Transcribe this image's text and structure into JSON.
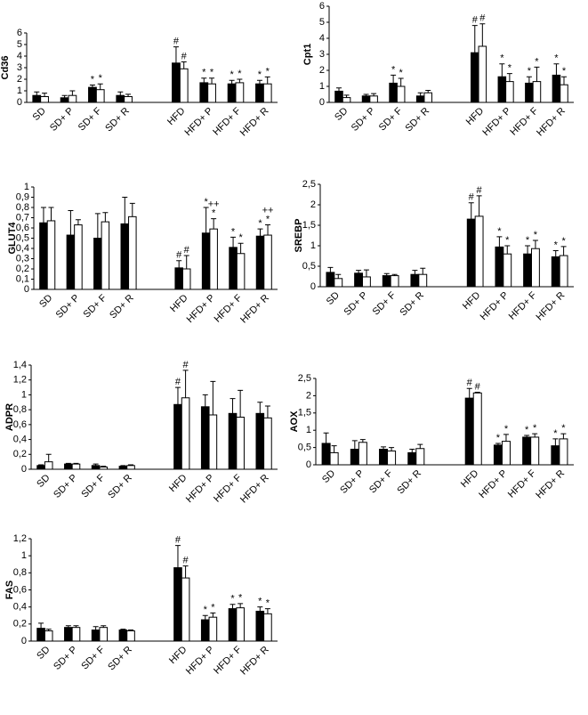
{
  "chart_data": [
    {
      "type": "bar",
      "ylabel": "Cd36",
      "categories": [
        "SD",
        "SD+ P",
        "SD+ F",
        "SD+ R",
        null,
        "HFD",
        "HFD+ P",
        "HFD+ F",
        "HFD+ R"
      ],
      "ylim": [
        0,
        6
      ],
      "yticks": [
        0,
        1,
        2,
        3,
        4,
        5,
        6
      ],
      "series": [
        {
          "color": "#000000",
          "values": [
            0.6,
            0.4,
            1.3,
            0.6,
            null,
            3.4,
            1.7,
            1.6,
            1.6
          ],
          "errors": [
            0.3,
            0.2,
            0.2,
            0.3,
            null,
            1.4,
            0.4,
            0.3,
            0.3
          ],
          "markers": [
            null,
            null,
            "*",
            null,
            null,
            "#",
            "*",
            "*",
            "*"
          ]
        },
        {
          "color": "#ffffff",
          "values": [
            0.5,
            0.6,
            1.1,
            0.5,
            null,
            2.9,
            1.6,
            1.7,
            1.6
          ],
          "errors": [
            0.3,
            0.4,
            0.5,
            0.2,
            null,
            0.6,
            0.5,
            0.3,
            0.6
          ],
          "markers": [
            null,
            null,
            "*",
            null,
            null,
            "#",
            "*",
            "*",
            "*"
          ]
        }
      ]
    },
    {
      "type": "bar",
      "ylabel": "Cpt1",
      "categories": [
        "SD",
        "SD+ P",
        "SD+ F",
        "SD+ R",
        null,
        "HFD",
        "HFD+ P",
        "HFD+ F",
        "HFD+ R"
      ],
      "ylim": [
        0,
        6
      ],
      "yticks": [
        0,
        1,
        2,
        3,
        4,
        5,
        6
      ],
      "series": [
        {
          "color": "#000000",
          "values": [
            0.7,
            0.4,
            1.2,
            0.4,
            null,
            3.1,
            1.6,
            1.2,
            1.7
          ],
          "errors": [
            0.2,
            0.1,
            0.5,
            0.2,
            null,
            1.7,
            0.8,
            0.4,
            0.7
          ],
          "markers": [
            null,
            null,
            "*",
            null,
            null,
            "#",
            "*",
            "*",
            "*"
          ]
        },
        {
          "color": "#ffffff",
          "values": [
            0.3,
            0.4,
            1.0,
            0.6,
            null,
            3.5,
            1.3,
            1.3,
            1.1
          ],
          "errors": [
            0.15,
            0.15,
            0.5,
            0.15,
            null,
            1.4,
            0.5,
            0.9,
            0.5
          ],
          "markers": [
            null,
            null,
            "*",
            null,
            null,
            "#",
            "*",
            "*",
            "*"
          ]
        }
      ]
    },
    {
      "type": "bar",
      "ylabel": "GLUT4",
      "categories": [
        "SD",
        "SD+ P",
        "SD+ F",
        "SD+ R",
        null,
        "HFD",
        "HFD+ P",
        "HFD+ F",
        "HFD+ R"
      ],
      "ylim": [
        0,
        1
      ],
      "yticks": [
        0,
        {
          "value": 0.1,
          "label": "0,1"
        },
        {
          "value": 0.2,
          "label": "0,2"
        },
        {
          "value": 0.3,
          "label": "0,3"
        },
        {
          "value": 0.4,
          "label": "0,4"
        },
        {
          "value": 0.5,
          "label": "0,5"
        },
        {
          "value": 0.6,
          "label": "0,6"
        },
        {
          "value": 0.7,
          "label": "0,7"
        },
        {
          "value": 0.8,
          "label": "0,8"
        },
        {
          "value": 0.9,
          "label": "0,9"
        },
        1
      ],
      "series": [
        {
          "color": "#000000",
          "values": [
            0.65,
            0.53,
            0.5,
            0.64,
            null,
            0.21,
            0.55,
            0.41,
            0.52
          ],
          "errors": [
            0.15,
            0.24,
            0.24,
            0.26,
            null,
            0.07,
            0.25,
            0.1,
            0.07
          ],
          "markers": [
            null,
            null,
            null,
            null,
            null,
            "#",
            "*",
            "*",
            "*"
          ]
        },
        {
          "color": "#ffffff",
          "values": [
            0.67,
            0.63,
            0.66,
            0.71,
            null,
            0.2,
            0.59,
            0.35,
            0.53
          ],
          "errors": [
            0.13,
            0.05,
            0.09,
            0.13,
            null,
            0.13,
            0.1,
            0.1,
            0.1
          ],
          "markers": [
            null,
            null,
            null,
            null,
            null,
            "#",
            [
              "++",
              "*"
            ],
            "*",
            [
              "++",
              "*"
            ]
          ]
        }
      ]
    },
    {
      "type": "bar",
      "ylabel": "SREBP",
      "categories": [
        "SD",
        "SD+ P",
        "SD+ F",
        "SD+ R",
        null,
        "HFD",
        "HFD+ P",
        "HFD+ F",
        "HFD+ R"
      ],
      "ylim": [
        0,
        2.5
      ],
      "yticks": [
        0,
        {
          "value": 0.5,
          "label": "0,5"
        },
        1,
        {
          "value": 1.5,
          "label": "1,5"
        },
        2,
        {
          "value": 2.5,
          "label": "2,5"
        }
      ],
      "series": [
        {
          "color": "#000000",
          "values": [
            0.35,
            0.33,
            0.27,
            0.3,
            null,
            1.65,
            0.97,
            0.8,
            0.73
          ],
          "errors": [
            0.12,
            0.07,
            0.05,
            0.1,
            null,
            0.4,
            0.25,
            0.2,
            0.15
          ],
          "markers": [
            null,
            null,
            null,
            null,
            null,
            "#",
            "*",
            "*",
            "*"
          ]
        },
        {
          "color": "#ffffff",
          "values": [
            0.2,
            0.24,
            0.27,
            0.3,
            null,
            1.72,
            0.8,
            0.93,
            0.76
          ],
          "errors": [
            0.1,
            0.17,
            0.03,
            0.15,
            null,
            0.5,
            0.2,
            0.2,
            0.22
          ],
          "markers": [
            null,
            null,
            null,
            null,
            null,
            "#",
            "*",
            "*",
            "*"
          ]
        }
      ]
    },
    {
      "type": "bar",
      "ylabel": "ADPR",
      "categories": [
        "SD",
        "SD+ P",
        "SD+ F",
        "SD+ R",
        null,
        "HFD",
        "HFD+ P",
        "HFD+ F",
        "HFD+ R"
      ],
      "ylim": [
        0,
        1.4
      ],
      "yticks": [
        0,
        {
          "value": 0.2,
          "label": "0,2"
        },
        {
          "value": 0.4,
          "label": "0,4"
        },
        {
          "value": 0.6,
          "label": "0,6"
        },
        {
          "value": 0.8,
          "label": "0,8"
        },
        1,
        {
          "value": 1.2,
          "label": "1,2"
        },
        {
          "value": 1.4,
          "label": "1,4"
        }
      ],
      "series": [
        {
          "color": "#000000",
          "values": [
            0.05,
            0.07,
            0.05,
            0.04,
            null,
            0.87,
            0.84,
            0.75,
            0.75
          ],
          "errors": [
            0.01,
            0.01,
            0.02,
            0.01,
            null,
            0.23,
            0.16,
            0.2,
            0.15
          ],
          "markers": [
            null,
            null,
            null,
            null,
            null,
            "#",
            null,
            null,
            null
          ]
        },
        {
          "color": "#ffffff",
          "values": [
            0.1,
            0.07,
            0.03,
            0.05,
            null,
            0.96,
            0.73,
            0.7,
            0.69
          ],
          "errors": [
            0.1,
            0.01,
            0.01,
            0.01,
            null,
            0.37,
            0.45,
            0.36,
            0.16
          ],
          "markers": [
            null,
            null,
            null,
            null,
            null,
            "#",
            null,
            null,
            null
          ]
        }
      ]
    },
    {
      "type": "bar",
      "ylabel": "AOX",
      "categories": [
        "SD",
        "SD+ P",
        "SD+ F",
        "SD+ R",
        null,
        "HFD",
        "HFD+ P",
        "HFD+ F",
        "HFD+ R"
      ],
      "ylim": [
        0,
        2.5
      ],
      "yticks": [
        0,
        {
          "value": 0.5,
          "label": "0,5"
        },
        1,
        {
          "value": 1.5,
          "label": "1,5"
        },
        2,
        {
          "value": 2.5,
          "label": "2,5"
        }
      ],
      "series": [
        {
          "color": "#000000",
          "values": [
            0.62,
            0.45,
            0.45,
            0.35,
            null,
            1.93,
            0.57,
            0.8,
            0.55
          ],
          "errors": [
            0.3,
            0.25,
            0.07,
            0.1,
            null,
            0.28,
            0.05,
            0.05,
            0.2
          ],
          "markers": [
            null,
            null,
            null,
            null,
            null,
            "#",
            "*",
            "*",
            "*"
          ]
        },
        {
          "color": "#ffffff",
          "values": [
            0.35,
            0.65,
            0.4,
            0.47,
            null,
            2.08,
            0.68,
            0.8,
            0.75
          ],
          "errors": [
            0.2,
            0.08,
            0.1,
            0.12,
            null,
            0.02,
            0.2,
            0.1,
            0.15
          ],
          "markers": [
            null,
            null,
            null,
            null,
            null,
            "#",
            "*",
            "*",
            "*"
          ]
        }
      ]
    },
    {
      "type": "bar",
      "ylabel": "FAS",
      "categories": [
        "SD",
        "SD+ P",
        "SD+ F",
        "SD+ R",
        null,
        "HFD",
        "HFD+ P",
        "HFD+ F",
        "HFD+ R"
      ],
      "ylim": [
        0,
        1.2
      ],
      "yticks": [
        0,
        {
          "value": 0.2,
          "label": "0,2"
        },
        {
          "value": 0.4,
          "label": "0,4"
        },
        {
          "value": 0.6,
          "label": "0,6"
        },
        {
          "value": 0.8,
          "label": "0,8"
        },
        1,
        {
          "value": 1.2,
          "label": "1,2"
        }
      ],
      "series": [
        {
          "color": "#000000",
          "values": [
            0.15,
            0.16,
            0.13,
            0.13,
            null,
            0.86,
            0.25,
            0.38,
            0.35
          ],
          "errors": [
            0.06,
            0.02,
            0.04,
            0.01,
            null,
            0.26,
            0.05,
            0.05,
            0.05
          ],
          "markers": [
            null,
            null,
            null,
            null,
            null,
            "#",
            "*",
            "*",
            "*"
          ]
        },
        {
          "color": "#ffffff",
          "values": [
            0.12,
            0.16,
            0.16,
            0.12,
            null,
            0.74,
            0.28,
            0.39,
            0.32
          ],
          "errors": [
            0.02,
            0.02,
            0.02,
            0.01,
            null,
            0.14,
            0.05,
            0.05,
            0.06
          ],
          "markers": [
            null,
            null,
            null,
            null,
            null,
            "#",
            "*",
            "*",
            "*"
          ]
        }
      ]
    }
  ]
}
